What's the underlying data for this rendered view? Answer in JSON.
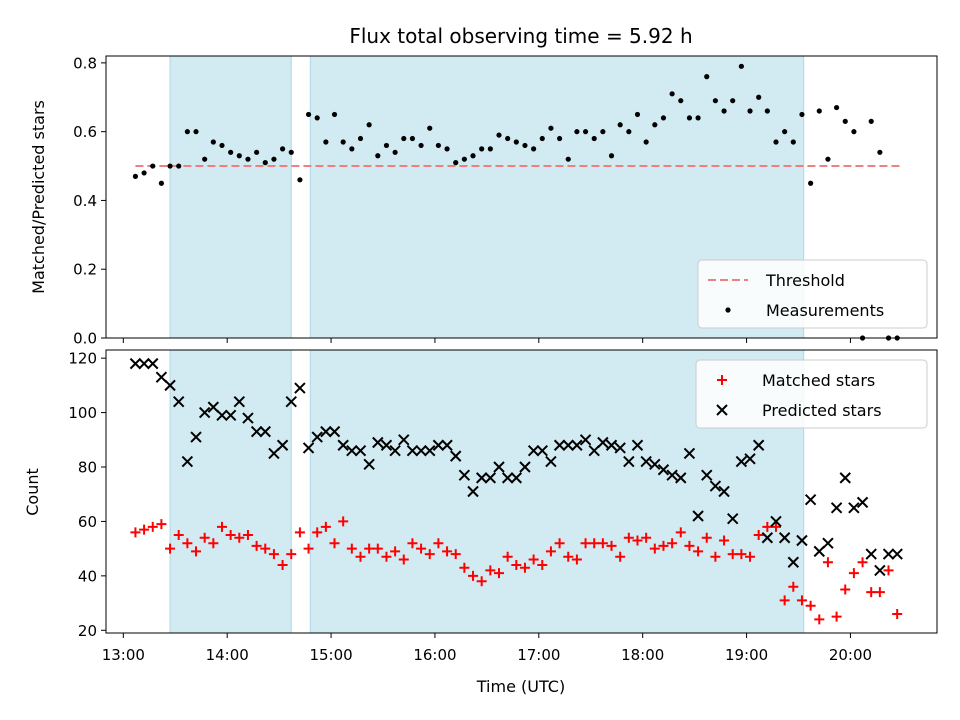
{
  "chart_data": {
    "title": "Flux total observing time = 5.92 h",
    "xlabel": "Time (UTC)",
    "x_ticks": [
      "13:00",
      "14:00",
      "15:00",
      "16:00",
      "17:00",
      "18:00",
      "19:00",
      "20:00"
    ],
    "x_range": [
      "12:50",
      "20:50"
    ],
    "shaded_intervals": [
      [
        "13:27",
        "14:37"
      ],
      [
        "14:48",
        "19:33"
      ]
    ],
    "shade_color": "#add8e6",
    "panels": [
      {
        "type": "scatter",
        "ylabel": "Matched/Predicted stars",
        "ylim": [
          0,
          0.82
        ],
        "y_ticks": [
          "0.0",
          "0.2",
          "0.4",
          "0.6",
          "0.8"
        ],
        "y_tick_values": [
          0,
          0.2,
          0.4,
          0.6,
          0.8
        ],
        "legend": "lower-right",
        "series": [
          {
            "name": "Threshold",
            "kind": "dashed-line",
            "color": "#f08080",
            "x": [
              "13:07",
              "20:30"
            ],
            "y": [
              0.5,
              0.5
            ]
          },
          {
            "name": "Measurements",
            "kind": "points",
            "color": "#000000",
            "x": [
              "13:07",
              "13:12",
              "13:17",
              "13:22",
              "13:27",
              "13:32",
              "13:37",
              "13:42",
              "13:47",
              "13:52",
              "13:57",
              "14:02",
              "14:07",
              "14:12",
              "14:17",
              "14:22",
              "14:27",
              "14:32",
              "14:37",
              "14:42",
              "14:47",
              "14:52",
              "14:57",
              "15:02",
              "15:07",
              "15:12",
              "15:17",
              "15:22",
              "15:27",
              "15:32",
              "15:37",
              "15:42",
              "15:47",
              "15:52",
              "15:57",
              "16:02",
              "16:07",
              "16:12",
              "16:17",
              "16:22",
              "16:27",
              "16:32",
              "16:37",
              "16:42",
              "16:47",
              "16:52",
              "16:57",
              "17:02",
              "17:07",
              "17:12",
              "17:17",
              "17:22",
              "17:27",
              "17:32",
              "17:37",
              "17:42",
              "17:47",
              "17:52",
              "17:57",
              "18:02",
              "18:07",
              "18:12",
              "18:17",
              "18:22",
              "18:27",
              "18:32",
              "18:37",
              "18:42",
              "18:47",
              "18:52",
              "18:57",
              "19:02",
              "19:07",
              "19:12",
              "19:17",
              "19:22",
              "19:27",
              "19:32",
              "19:37",
              "19:42",
              "19:47",
              "19:52",
              "19:57",
              "20:02",
              "20:07",
              "20:12",
              "20:17",
              "20:22",
              "20:27"
            ],
            "y": [
              0.47,
              0.48,
              0.5,
              0.45,
              0.5,
              0.5,
              0.6,
              0.6,
              0.52,
              0.57,
              0.56,
              0.54,
              0.53,
              0.52,
              0.54,
              0.51,
              0.52,
              0.55,
              0.54,
              0.46,
              0.65,
              0.64,
              0.57,
              0.65,
              0.57,
              0.55,
              0.58,
              0.62,
              0.53,
              0.56,
              0.54,
              0.58,
              0.58,
              0.56,
              0.61,
              0.56,
              0.55,
              0.51,
              0.52,
              0.53,
              0.55,
              0.55,
              0.59,
              0.58,
              0.57,
              0.56,
              0.55,
              0.58,
              0.61,
              0.58,
              0.52,
              0.6,
              0.6,
              0.58,
              0.6,
              0.53,
              0.62,
              0.6,
              0.65,
              0.57,
              0.62,
              0.64,
              0.71,
              0.69,
              0.64,
              0.64,
              0.76,
              0.69,
              0.66,
              0.69,
              0.79,
              0.66,
              0.7,
              0.66,
              0.57,
              0.6,
              0.57,
              0.65,
              0.45,
              0.66,
              0.52,
              0.67,
              0.63,
              0.6,
              0.0,
              0.63,
              0.54,
              0.0,
              0.0
            ]
          }
        ]
      },
      {
        "type": "scatter",
        "ylabel": "Count",
        "ylim": [
          19,
          123
        ],
        "y_ticks": [
          "20",
          "40",
          "60",
          "80",
          "100",
          "120"
        ],
        "y_tick_values": [
          20,
          40,
          60,
          80,
          100,
          120
        ],
        "legend": "upper-right",
        "series": [
          {
            "name": "Matched stars",
            "marker": "plus",
            "color": "#ff0000",
            "x": [
              "13:07",
              "13:12",
              "13:17",
              "13:22",
              "13:27",
              "13:32",
              "13:37",
              "13:42",
              "13:47",
              "13:52",
              "13:57",
              "14:02",
              "14:07",
              "14:12",
              "14:17",
              "14:22",
              "14:27",
              "14:32",
              "14:37",
              "14:42",
              "14:47",
              "14:52",
              "14:57",
              "15:02",
              "15:07",
              "15:12",
              "15:17",
              "15:22",
              "15:27",
              "15:32",
              "15:37",
              "15:42",
              "15:47",
              "15:52",
              "15:57",
              "16:02",
              "16:07",
              "16:12",
              "16:17",
              "16:22",
              "16:27",
              "16:32",
              "16:37",
              "16:42",
              "16:47",
              "16:52",
              "16:57",
              "17:02",
              "17:07",
              "17:12",
              "17:17",
              "17:22",
              "17:27",
              "17:32",
              "17:37",
              "17:42",
              "17:47",
              "17:52",
              "17:57",
              "18:02",
              "18:07",
              "18:12",
              "18:17",
              "18:22",
              "18:27",
              "18:32",
              "18:37",
              "18:42",
              "18:47",
              "18:52",
              "18:57",
              "19:02",
              "19:07",
              "19:12",
              "19:17",
              "19:22",
              "19:27",
              "19:32",
              "19:37",
              "19:42",
              "19:47",
              "19:52",
              "19:57",
              "20:02",
              "20:07",
              "20:12",
              "20:17",
              "20:22",
              "20:27"
            ],
            "y": [
              56,
              57,
              58,
              59,
              50,
              55,
              52,
              49,
              54,
              52,
              58,
              55,
              54,
              55,
              51,
              50,
              48,
              44,
              48,
              56,
              50,
              56,
              58,
              52,
              60,
              50,
              47,
              50,
              50,
              47,
              49,
              46,
              52,
              50,
              48,
              52,
              49,
              48,
              43,
              40,
              38,
              42,
              41,
              47,
              44,
              43,
              46,
              44,
              49,
              52,
              47,
              46,
              52,
              52,
              52,
              51,
              47,
              54,
              53,
              54,
              50,
              51,
              52,
              56,
              51,
              49,
              54,
              47,
              53,
              48,
              48,
              47,
              55,
              58,
              58,
              31,
              36,
              31,
              29,
              24,
              45,
              25,
              35,
              41,
              45,
              34,
              34,
              42,
              26
            ]
          },
          {
            "name": "Predicted stars",
            "marker": "cross",
            "color": "#000000",
            "x": [
              "13:07",
              "13:12",
              "13:17",
              "13:22",
              "13:27",
              "13:32",
              "13:37",
              "13:42",
              "13:47",
              "13:52",
              "13:57",
              "14:02",
              "14:07",
              "14:12",
              "14:17",
              "14:22",
              "14:27",
              "14:32",
              "14:37",
              "14:42",
              "14:47",
              "14:52",
              "14:57",
              "15:02",
              "15:07",
              "15:12",
              "15:17",
              "15:22",
              "15:27",
              "15:32",
              "15:37",
              "15:42",
              "15:47",
              "15:52",
              "15:57",
              "16:02",
              "16:07",
              "16:12",
              "16:17",
              "16:22",
              "16:27",
              "16:32",
              "16:37",
              "16:42",
              "16:47",
              "16:52",
              "16:57",
              "17:02",
              "17:07",
              "17:12",
              "17:17",
              "17:22",
              "17:27",
              "17:32",
              "17:37",
              "17:42",
              "17:47",
              "17:52",
              "17:57",
              "18:02",
              "18:07",
              "18:12",
              "18:17",
              "18:22",
              "18:27",
              "18:32",
              "18:37",
              "18:42",
              "18:47",
              "18:52",
              "18:57",
              "19:02",
              "19:07",
              "19:12",
              "19:17",
              "19:22",
              "19:27",
              "19:32",
              "19:37",
              "19:42",
              "19:47",
              "19:52",
              "19:57",
              "20:02",
              "20:07",
              "20:12",
              "20:17",
              "20:22",
              "20:27"
            ],
            "y": [
              118,
              118,
              118,
              113,
              110,
              104,
              82,
              91,
              100,
              102,
              99,
              99,
              104,
              98,
              93,
              93,
              85,
              88,
              104,
              109,
              87,
              91,
              93,
              93,
              88,
              86,
              86,
              81,
              89,
              88,
              86,
              90,
              86,
              86,
              86,
              88,
              88,
              84,
              77,
              71,
              76,
              76,
              80,
              76,
              76,
              80,
              86,
              86,
              82,
              88,
              88,
              88,
              90,
              86,
              89,
              88,
              87,
              82,
              88,
              82,
              81,
              79,
              77,
              76,
              85,
              62,
              77,
              73,
              71,
              61,
              82,
              83,
              88,
              54,
              60,
              54,
              45,
              53,
              68,
              49,
              52,
              65,
              76,
              65,
              67,
              48,
              42,
              48,
              48
            ]
          }
        ]
      }
    ]
  }
}
